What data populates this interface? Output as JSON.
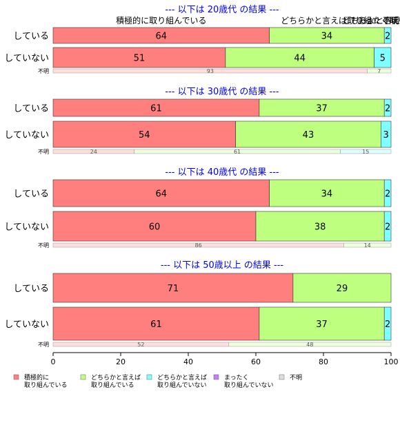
{
  "chart_data": {
    "type": "bar",
    "orientation": "horizontal",
    "stacked": true,
    "xlim": [
      0,
      100
    ],
    "x_ticks": [
      "0",
      "20",
      "40",
      "60",
      "80",
      "100"
    ],
    "category_colors": [
      "#ff7f7f",
      "#bfff7f",
      "#7fffff",
      "#bf7fff",
      "#dddddd"
    ],
    "top_labels": {
      "first": "積極的に取り組んでいる",
      "second": "どちらかと言えば取り組...",
      "third": "どちらかと言えば取り...",
      "fourth": "まったく取り組...",
      "fifth": "不明"
    },
    "groups": [
      {
        "title": "--- 以下は 20歳代 の結果 ---",
        "bars": [
          {
            "label": "している",
            "values": [
              64,
              34,
              2,
              0,
              0
            ]
          },
          {
            "label": "していない",
            "values": [
              51,
              44,
              5,
              0,
              0
            ]
          }
        ],
        "unknown": {
          "label": "不明",
          "values": [
            93,
            7,
            0,
            0,
            0
          ]
        }
      },
      {
        "title": "--- 以下は 30歳代 の結果 ---",
        "bars": [
          {
            "label": "している",
            "values": [
              61,
              37,
              2,
              0,
              0
            ]
          },
          {
            "label": "していない",
            "values": [
              54,
              43,
              3,
              0,
              0
            ]
          }
        ],
        "unknown": {
          "label": "不明",
          "values": [
            24,
            61,
            15,
            0,
            0
          ]
        }
      },
      {
        "title": "--- 以下は 40歳代 の結果 ---",
        "bars": [
          {
            "label": "している",
            "values": [
              64,
              34,
              2,
              0,
              0
            ]
          },
          {
            "label": "していない",
            "values": [
              60,
              38,
              2,
              0,
              0
            ]
          }
        ],
        "unknown": {
          "label": "不明",
          "values": [
            86,
            14,
            0,
            0,
            0
          ]
        }
      },
      {
        "title": "--- 以下は 50歳以上 の結果 ---",
        "bars": [
          {
            "label": "している",
            "values": [
              71,
              29,
              0,
              0,
              0
            ]
          },
          {
            "label": "していない",
            "values": [
              61,
              37,
              2,
              0,
              0
            ]
          }
        ],
        "unknown": {
          "label": "不明",
          "values": [
            52,
            48,
            0,
            0,
            0
          ]
        }
      }
    ],
    "legend": [
      {
        "label": "積極的に\n取り組んでいる",
        "color": "#ff7f7f"
      },
      {
        "label": "どちらかと言えば\n取り組んでいる",
        "color": "#bfff7f"
      },
      {
        "label": "どちらかと言えば\n取り組んでいない",
        "color": "#7fffff"
      },
      {
        "label": "まったく\n取り組んでいない",
        "color": "#bf7fff"
      },
      {
        "label": "不明",
        "color": "#dddddd"
      }
    ],
    "legend_position": "bottom"
  }
}
